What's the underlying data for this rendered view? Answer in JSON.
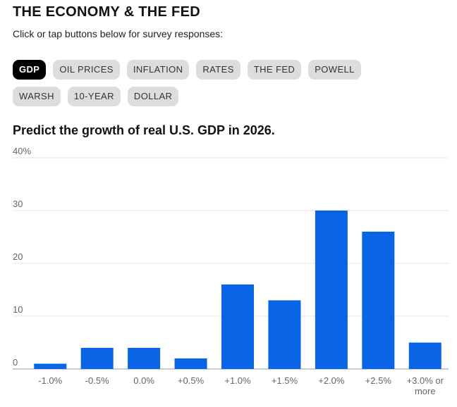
{
  "header": {
    "title": "THE ECONOMY & THE FED",
    "subtitle": "Click or tap buttons below for survey responses:"
  },
  "buttons": [
    "GDP",
    "OIL PRICES",
    "INFLATION",
    "RATES",
    "THE FED",
    "POWELL",
    "WARSH",
    "10-YEAR",
    "DOLLAR"
  ],
  "chart_data": {
    "type": "bar",
    "title": "Predict the growth of real U.S. GDP in 2026.",
    "categories": [
      "-1.0%",
      "-0.5%",
      "0.0%",
      "+0.5%",
      "+1.0%",
      "+1.5%",
      "+2.0%",
      "+2.5%",
      "+3.0% or more"
    ],
    "values": [
      1,
      4,
      4,
      2,
      16,
      13,
      30,
      26,
      5
    ],
    "color": "#0a64e6",
    "ylim": [
      0,
      40
    ],
    "yticks": [
      0,
      10,
      20,
      30,
      {
        "value": 40,
        "label": "40%"
      }
    ],
    "grid": true
  }
}
